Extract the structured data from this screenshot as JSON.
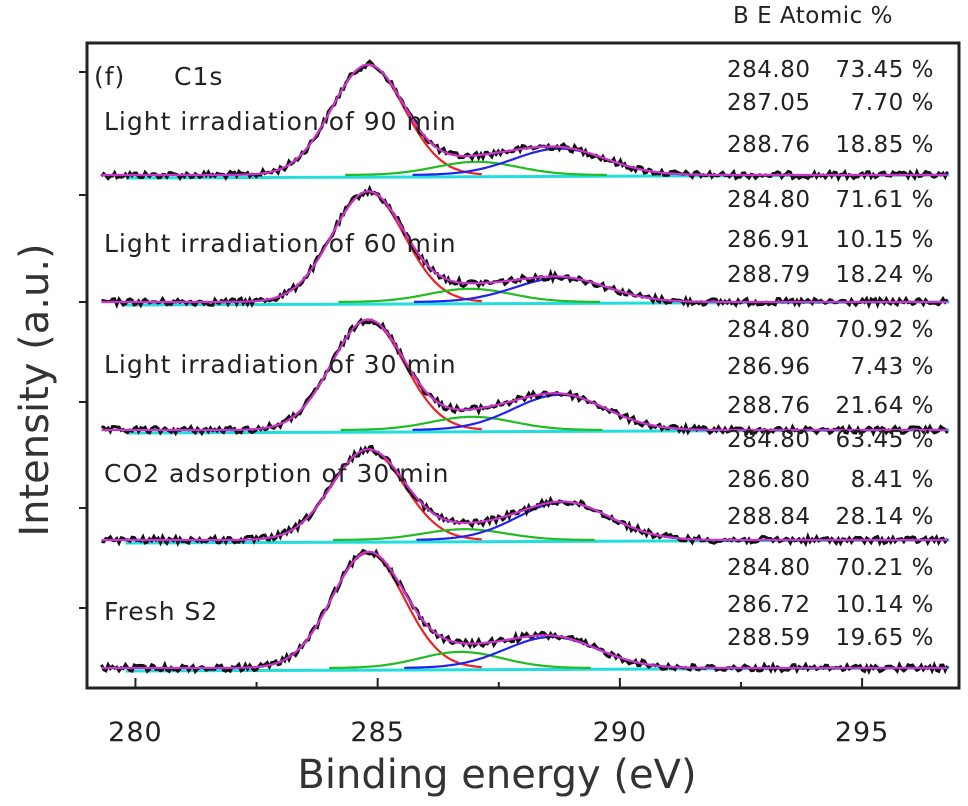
{
  "chart_data": {
    "type": "line",
    "panel_tag": "(f)",
    "element_label": "C1s",
    "header": "B E  Atomic %",
    "xlabel": "Binding energy (eV)",
    "ylabel": "Intensity (a.u.)",
    "xlim": [
      279,
      297
    ],
    "xticks": [
      "280",
      "285",
      "290",
      "295"
    ],
    "xtick_values": [
      280,
      285,
      290,
      295
    ],
    "colors": {
      "data": "#111111",
      "fit_total": "#cc33cc",
      "peak1": "#ee2222",
      "peak2": "#22bb22",
      "peak3": "#2222ee",
      "baseline": "#22dddd"
    },
    "panels": [
      {
        "label": "Light irradiation of 90 min",
        "peaks": [
          {
            "be": 284.8,
            "be_text": "284.80",
            "atomic_text": "73.45 %",
            "atomic": 73.45
          },
          {
            "be": 287.05,
            "be_text": "287.05",
            "atomic_text": "7.70 %",
            "atomic": 7.7
          },
          {
            "be": 288.76,
            "be_text": "288.76",
            "atomic_text": "18.85 %",
            "atomic": 18.85
          }
        ],
        "relative_heights": [
          1.0,
          0.12,
          0.24
        ]
      },
      {
        "label": "Light irradiation of 60 min",
        "peaks": [
          {
            "be": 284.8,
            "be_text": "284.80",
            "atomic_text": "71.61 %",
            "atomic": 71.61
          },
          {
            "be": 286.91,
            "be_text": "286.91",
            "atomic_text": "10.15 %",
            "atomic": 10.15
          },
          {
            "be": 288.79,
            "be_text": "288.79",
            "atomic_text": "18.24 %",
            "atomic": 18.24
          }
        ],
        "relative_heights": [
          1.0,
          0.12,
          0.22
        ]
      },
      {
        "label": "Light irradiation of 30 min",
        "peaks": [
          {
            "be": 284.8,
            "be_text": "284.80",
            "atomic_text": "70.92 %",
            "atomic": 70.92
          },
          {
            "be": 286.96,
            "be_text": "286.96",
            "atomic_text": "7.43 %",
            "atomic": 7.43
          },
          {
            "be": 288.76,
            "be_text": "288.76",
            "atomic_text": "21.64 %",
            "atomic": 21.64
          }
        ],
        "relative_heights": [
          1.0,
          0.12,
          0.32
        ]
      },
      {
        "label": "CO2 adsorption of 30 min",
        "peaks": [
          {
            "be": 284.8,
            "be_text": "284.80",
            "atomic_text": "63.45 %",
            "atomic": 63.45
          },
          {
            "be": 286.8,
            "be_text": "286.80",
            "atomic_text": "8.41 %",
            "atomic": 8.41
          },
          {
            "be": 288.84,
            "be_text": "288.84",
            "atomic_text": "28.14 %",
            "atomic": 28.14
          }
        ],
        "relative_heights": [
          1.0,
          0.12,
          0.42
        ]
      },
      {
        "label": "Fresh S2",
        "peaks": [
          {
            "be": 284.8,
            "be_text": "284.80",
            "atomic_text": "70.21 %",
            "atomic": 70.21
          },
          {
            "be": 286.72,
            "be_text": "286.72",
            "atomic_text": "10.14 %",
            "atomic": 10.14
          },
          {
            "be": 288.59,
            "be_text": "288.59",
            "atomic_text": "19.65 %",
            "atomic": 19.65
          }
        ],
        "relative_heights": [
          1.0,
          0.14,
          0.27
        ]
      }
    ]
  }
}
